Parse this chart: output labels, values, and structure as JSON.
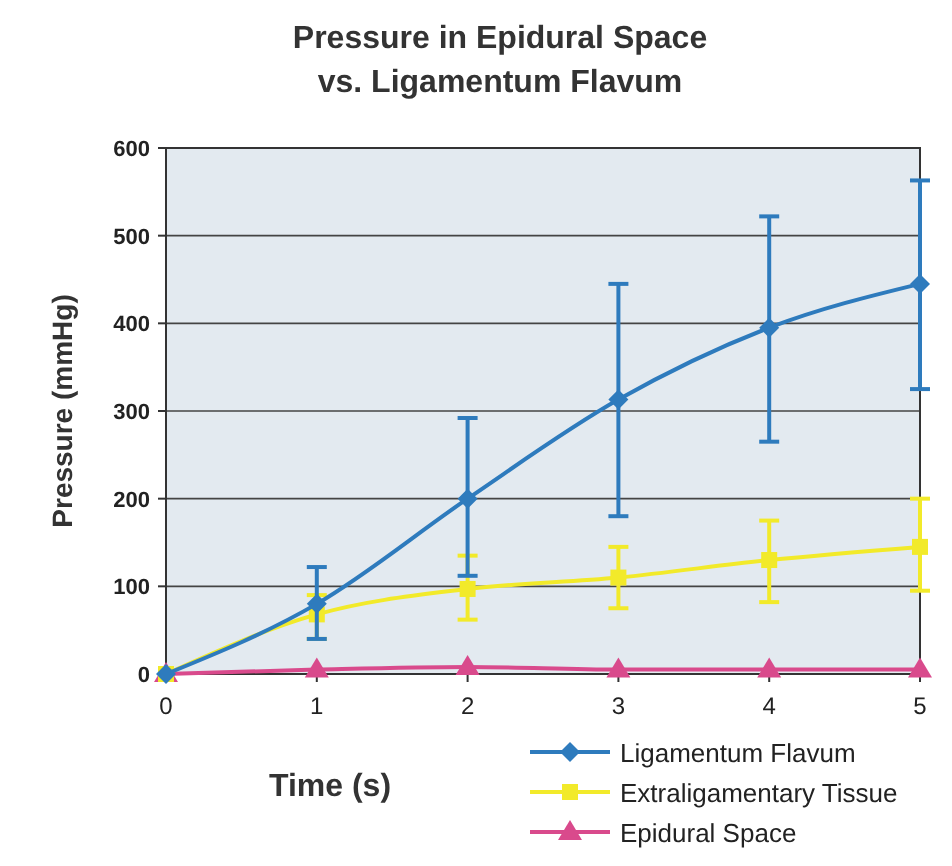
{
  "chart_data": {
    "type": "line",
    "title": "Pressure in Epidural Space\nvs. Ligamentum Flavum",
    "xlabel": "Time (s)",
    "ylabel": "Pressure (mmHg)",
    "x": [
      0,
      1,
      2,
      3,
      4,
      5
    ],
    "xlim": [
      0,
      5
    ],
    "xticks": [
      0,
      1,
      2,
      3,
      4,
      5
    ],
    "ylim": [
      0,
      600
    ],
    "yticks": [
      0,
      100,
      200,
      300,
      400,
      500,
      600
    ],
    "grid": "y",
    "legend": "bottom right",
    "series": [
      {
        "name": "Ligamentum Flavum",
        "color": "#2e7bbd",
        "marker": "diamond",
        "values": [
          0,
          80,
          200,
          313,
          395,
          445
        ],
        "errors": [
          null,
          [
            40,
            122
          ],
          [
            112,
            292
          ],
          [
            180,
            445
          ],
          [
            265,
            522
          ],
          [
            325,
            563
          ]
        ]
      },
      {
        "name": "Extraligamentary Tissue",
        "color": "#f2ea2a",
        "marker": "square",
        "values": [
          0,
          68,
          97,
          110,
          130,
          145
        ],
        "errors": [
          null,
          [
            40,
            90
          ],
          [
            62,
            135
          ],
          [
            75,
            145
          ],
          [
            82,
            175
          ],
          [
            95,
            200
          ]
        ]
      },
      {
        "name": "Epidural Space",
        "color": "#d94a8c",
        "marker": "triangle",
        "values": [
          0,
          5,
          8,
          5,
          5,
          5
        ]
      }
    ]
  }
}
